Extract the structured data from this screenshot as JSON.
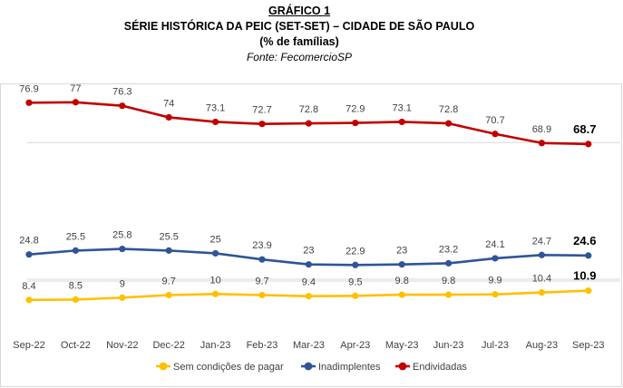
{
  "header": {
    "label": "GRÁFICO 1",
    "title": "SÉRIE HISTÓRICA DA PEIC (SET-SET) – CIDADE DE SÃO PAULO",
    "unit": "(% de famílias)",
    "source": "Fonte: FecomercioSP"
  },
  "chart_data": {
    "type": "line",
    "title": "SÉRIE HISTÓRICA DA PEIC (SET-SET) – CIDADE DE SÃO PAULO",
    "subtitle": "(% de famílias)",
    "categories": [
      "Sep-22",
      "Oct-22",
      "Nov-22",
      "Dec-22",
      "Jan-23",
      "Feb-23",
      "Mar-23",
      "Apr-23",
      "May-23",
      "Jun-23",
      "Jul-23",
      "Aug-23",
      "Sep-23"
    ],
    "series": [
      {
        "name": "Endividadas",
        "color": "#c00000",
        "values": [
          76.9,
          77,
          76.3,
          74,
          73.1,
          72.7,
          72.8,
          72.9,
          73.1,
          72.8,
          70.7,
          68.9,
          68.7
        ]
      },
      {
        "name": "Inadimplentes",
        "color": "#2f5597",
        "values": [
          24.8,
          25.5,
          25.8,
          25.5,
          25,
          23.9,
          23,
          22.9,
          23,
          23.2,
          24.1,
          24.7,
          24.6
        ]
      },
      {
        "name": "Sem condições de pagar",
        "color": "#ffc000",
        "values": [
          8.4,
          8.5,
          9,
          9.7,
          10,
          9.7,
          9.4,
          9.5,
          9.8,
          9.8,
          9.9,
          10.4,
          10.9
        ]
      }
    ],
    "legend_order": [
      "Sem condições de pagar",
      "Inadimplentes",
      "Endividadas"
    ],
    "legend_position": "bottom",
    "grid": true,
    "axis_break": true,
    "data_labels": true
  }
}
